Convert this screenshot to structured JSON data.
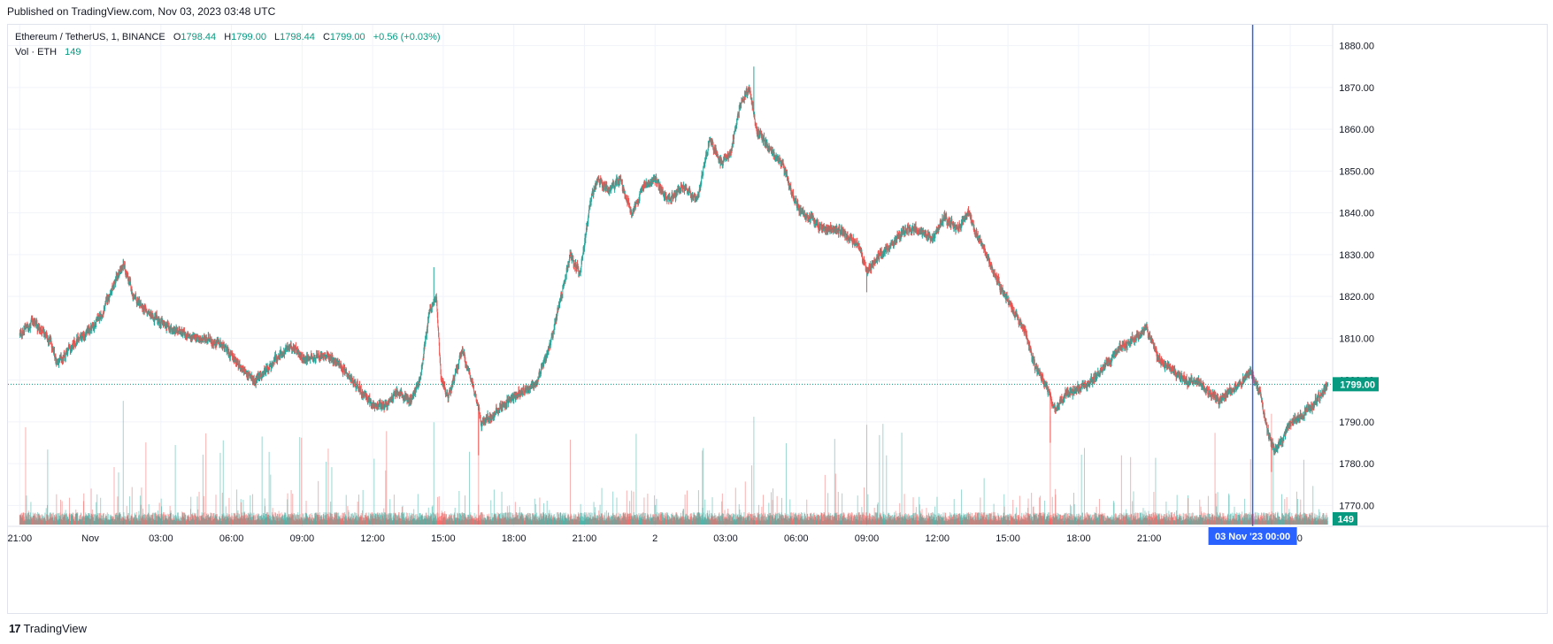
{
  "header": {
    "published": "Published on TradingView.com, Nov 03, 2023 03:48 UTC"
  },
  "legend": {
    "symbol": "Ethereum / TetherUS, 1, BINANCE",
    "open_label": "O",
    "open": "1798.44",
    "high_label": "H",
    "high": "1799.00",
    "low_label": "L",
    "low": "1798.44",
    "close_label": "C",
    "close": "1799.00",
    "change": "+0.56 (+0.03%)",
    "vol_label": "Vol · ETH",
    "vol_value": "149"
  },
  "footer": {
    "brand": "TradingView",
    "logo_mark": "17"
  },
  "colors": {
    "up": "#26a69a",
    "down": "#ef5350",
    "crosshair": "#2962ff",
    "current": "#089981",
    "grid": "#f0f3fa"
  },
  "chart_data": {
    "type": "candlestick",
    "symbol": "ETH/USDT",
    "interval": "1",
    "ylim": [
      1765,
      1885
    ],
    "y_ticks": [
      "1880.00",
      "1870.00",
      "1860.00",
      "1850.00",
      "1840.00",
      "1830.00",
      "1820.00",
      "1810.00",
      "1800.00",
      "1790.00",
      "1780.00",
      "1770.00"
    ],
    "y_tick_values": [
      1880,
      1870,
      1860,
      1850,
      1840,
      1830,
      1820,
      1810,
      1800,
      1790,
      1780,
      1770
    ],
    "x_ticks": [
      "21:00",
      "Nov",
      "03:00",
      "06:00",
      "09:00",
      "12:00",
      "15:00",
      "18:00",
      "21:00",
      "2",
      "03:00",
      "06:00",
      "09:00",
      "12:00",
      "15:00",
      "18:00",
      "21:00",
      "03:00"
    ],
    "x_tick_hours": [
      0,
      3,
      6,
      9,
      12,
      15,
      18,
      21,
      24,
      27,
      30,
      33,
      36,
      39,
      42,
      45,
      48,
      54
    ],
    "x_range_hours": [
      -0.5,
      55.8
    ],
    "price_path": [
      [
        0,
        1811
      ],
      [
        0.6,
        1814
      ],
      [
        1.3,
        1809
      ],
      [
        1.6,
        1804
      ],
      [
        2.2,
        1808
      ],
      [
        3.0,
        1812
      ],
      [
        3.5,
        1816
      ],
      [
        4.0,
        1823
      ],
      [
        4.4,
        1828
      ],
      [
        4.8,
        1820
      ],
      [
        5.5,
        1816
      ],
      [
        6.5,
        1812
      ],
      [
        7.5,
        1810
      ],
      [
        8.5,
        1809
      ],
      [
        9.0,
        1806
      ],
      [
        9.5,
        1802
      ],
      [
        10.0,
        1800
      ],
      [
        10.6,
        1803
      ],
      [
        11.0,
        1806
      ],
      [
        11.5,
        1808
      ],
      [
        12.2,
        1805
      ],
      [
        13.0,
        1806
      ],
      [
        13.5,
        1804
      ],
      [
        14.3,
        1799
      ],
      [
        15.0,
        1794
      ],
      [
        15.6,
        1794
      ],
      [
        16.0,
        1797
      ],
      [
        16.6,
        1795
      ],
      [
        17.0,
        1800
      ],
      [
        17.4,
        1816
      ],
      [
        17.7,
        1820
      ],
      [
        17.9,
        1800
      ],
      [
        18.2,
        1796
      ],
      [
        18.8,
        1807
      ],
      [
        19.2,
        1800
      ],
      [
        19.6,
        1790
      ],
      [
        20.2,
        1792
      ],
      [
        20.8,
        1795
      ],
      [
        21.5,
        1798
      ],
      [
        21.9,
        1799
      ],
      [
        22.5,
        1808
      ],
      [
        23.0,
        1820
      ],
      [
        23.4,
        1830
      ],
      [
        23.8,
        1825
      ],
      [
        24.3,
        1845
      ],
      [
        24.6,
        1848
      ],
      [
        25.0,
        1845
      ],
      [
        25.5,
        1848
      ],
      [
        26.0,
        1840
      ],
      [
        26.5,
        1846
      ],
      [
        27.0,
        1848
      ],
      [
        27.5,
        1843
      ],
      [
        28.2,
        1846
      ],
      [
        28.8,
        1843
      ],
      [
        29.3,
        1858
      ],
      [
        29.8,
        1852
      ],
      [
        30.2,
        1854
      ],
      [
        30.6,
        1866
      ],
      [
        31.0,
        1870
      ],
      [
        31.3,
        1860
      ],
      [
        31.9,
        1855
      ],
      [
        32.4,
        1852
      ],
      [
        32.8,
        1845
      ],
      [
        33.2,
        1840
      ],
      [
        33.8,
        1838
      ],
      [
        34.3,
        1836
      ],
      [
        34.8,
        1836
      ],
      [
        35.3,
        1834
      ],
      [
        35.7,
        1832
      ],
      [
        36.0,
        1826
      ],
      [
        36.5,
        1830
      ],
      [
        37.0,
        1832
      ],
      [
        37.6,
        1836
      ],
      [
        38.2,
        1836
      ],
      [
        38.8,
        1834
      ],
      [
        39.3,
        1839
      ],
      [
        39.8,
        1836
      ],
      [
        40.3,
        1840
      ],
      [
        40.8,
        1833
      ],
      [
        41.2,
        1828
      ],
      [
        41.7,
        1822
      ],
      [
        42.2,
        1817
      ],
      [
        42.7,
        1812
      ],
      [
        43.1,
        1804
      ],
      [
        43.5,
        1800
      ],
      [
        44.0,
        1793
      ],
      [
        44.5,
        1797
      ],
      [
        45.0,
        1798
      ],
      [
        45.6,
        1800
      ],
      [
        46.2,
        1804
      ],
      [
        46.8,
        1808
      ],
      [
        47.4,
        1810
      ],
      [
        47.9,
        1812
      ],
      [
        48.4,
        1805
      ],
      [
        49.0,
        1802
      ],
      [
        49.5,
        1800
      ],
      [
        50.0,
        1800
      ],
      [
        50.5,
        1797
      ],
      [
        51.0,
        1795
      ],
      [
        51.5,
        1798
      ],
      [
        51.9,
        1799
      ],
      [
        52.3,
        1802
      ],
      [
        52.7,
        1797
      ],
      [
        53.0,
        1788
      ],
      [
        53.3,
        1783
      ],
      [
        53.7,
        1786
      ],
      [
        54.0,
        1790
      ],
      [
        54.6,
        1792
      ],
      [
        55.2,
        1796
      ],
      [
        55.6,
        1799
      ]
    ],
    "spike_wicks": [
      [
        4.4,
        1829
      ],
      [
        17.6,
        1827
      ],
      [
        19.5,
        1782
      ],
      [
        31.2,
        1875
      ],
      [
        36.0,
        1821
      ],
      [
        43.8,
        1785
      ],
      [
        53.2,
        1778
      ]
    ],
    "last_price": 1799.0,
    "last_price_label": "1799.00",
    "volume_last_label": "149",
    "crosshair_hour": 52.4,
    "crosshair_label": "03 Nov '23   00:00"
  }
}
